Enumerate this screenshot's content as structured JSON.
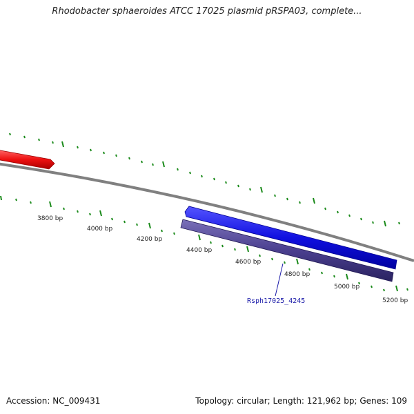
{
  "title": "Rhodobacter sphaeroides ATCC 17025 plasmid pRSPA03, complete...",
  "footer": {
    "accession": "Accession: NC_009431",
    "summary": "Topology: circular; Length: 121,962 bp; Genes: 109"
  },
  "map": {
    "scale_labels": [
      "3800 bp",
      "4000 bp",
      "4200 bp",
      "4400 bp",
      "4600 bp",
      "4800 bp",
      "5000 bp",
      "5200 bp"
    ],
    "gene_label": "Rsph17025_4245",
    "colors": {
      "backbone": "#808080",
      "tick": "#1a8a1a",
      "gene_forward_red": "#ee1111",
      "gene_forward_blue": "#1010e0",
      "gene_reverse_purple": "#4a3f8f",
      "label": "#1a1aa8"
    }
  }
}
